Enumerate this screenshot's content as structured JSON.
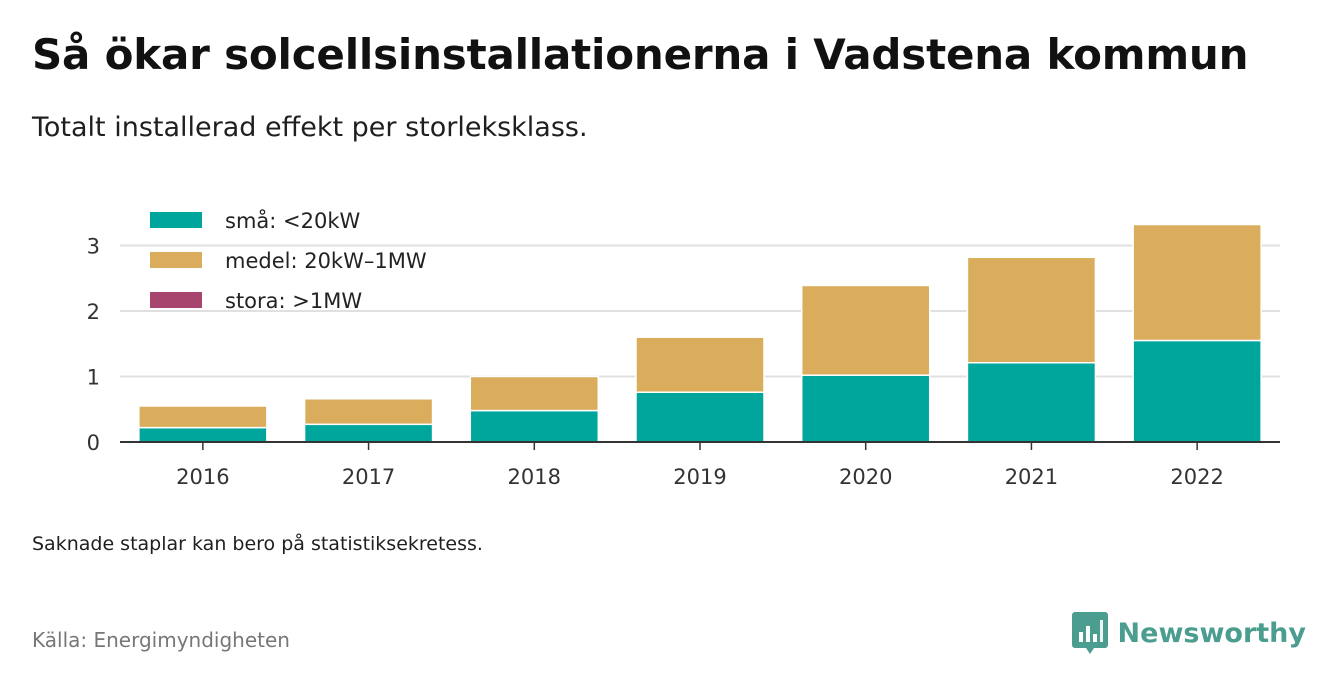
{
  "header": {
    "title": "Så ökar solcellsinstallationerna i Vadstena kommun",
    "subtitle": "Totalt installerad effekt per storleksklass."
  },
  "footer": {
    "note": "Saknade staplar kan bero på statistiksekretess.",
    "source": "Källa: Energimyndigheten",
    "brand": "Newsworthy",
    "brand_icon": "chart-bubble-icon",
    "brand_color": "#4a9d8f"
  },
  "chart_data": {
    "type": "bar",
    "stacked": true,
    "categories": [
      "2016",
      "2017",
      "2018",
      "2019",
      "2020",
      "2021",
      "2022"
    ],
    "series": [
      {
        "name": "små: <20kW",
        "color": "#00a69c",
        "values": [
          0.22,
          0.27,
          0.48,
          0.76,
          1.02,
          1.21,
          1.55
        ]
      },
      {
        "name": "medel: 20kW–1MW",
        "color": "#d9ad5b",
        "values": [
          0.33,
          0.39,
          0.52,
          0.84,
          1.37,
          1.61,
          1.77
        ]
      },
      {
        "name": "stora: >1MW",
        "color": "#a8456e",
        "values": [
          0,
          0,
          0,
          0,
          0,
          0,
          0
        ]
      }
    ],
    "yticks": [
      0,
      1,
      2,
      3
    ],
    "ylim": [
      0,
      3.4
    ],
    "grid": true,
    "legend_position": "top-left"
  }
}
